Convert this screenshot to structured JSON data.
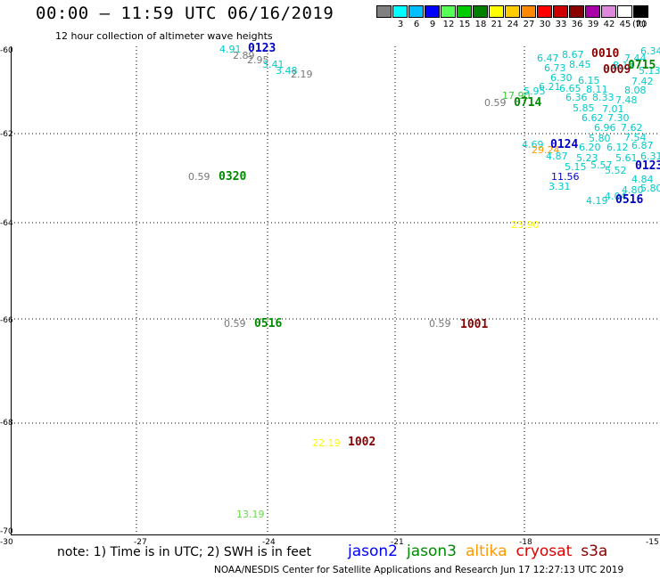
{
  "header": {
    "title": "00:00 – 11:59 UTC 06/16/2019",
    "subtitle": "12 hour collection of altimeter wave heights"
  },
  "scale": {
    "colors": [
      "#808080",
      "#00ffff",
      "#00bfff",
      "#0000ff",
      "#55ff55",
      "#00cc00",
      "#008000",
      "#ffff00",
      "#ffcc00",
      "#ff8800",
      "#ff0000",
      "#cc0000",
      "#880000",
      "#aa00aa",
      "#dd88dd",
      "#ffffff",
      "#000000"
    ],
    "labels": [
      "3",
      "6",
      "9",
      "12",
      "15",
      "18",
      "21",
      "24",
      "27",
      "30",
      "33",
      "36",
      "39",
      "42",
      "45",
      "70"
    ],
    "unit": "(ft)"
  },
  "axes": {
    "lat_labels": [
      "-60",
      "-62",
      "-64",
      "-66",
      "-68",
      "-70"
    ],
    "lon_labels": [
      "-30",
      "-27",
      "-24",
      "-21",
      "-18",
      "-15"
    ]
  },
  "map": {
    "wave_points": [
      {
        "text": "4.91",
        "color": "#00cccc"
      },
      {
        "text": "2.89",
        "color": "#777777"
      },
      {
        "text": "2.95",
        "color": "#777777"
      },
      {
        "text": "3.41",
        "color": "#00cccc"
      },
      {
        "text": "3.48",
        "color": "#00cccc"
      },
      {
        "text": "2.19",
        "color": "#777777"
      },
      {
        "text": "0.59",
        "color": "#777777"
      },
      {
        "text": "0.59",
        "color": "#777777"
      },
      {
        "text": "0.59",
        "color": "#777777"
      },
      {
        "text": "0.59",
        "color": "#777777"
      },
      {
        "text": "22.19",
        "color": "#ffff00"
      },
      {
        "text": "13.19",
        "color": "#66dd44"
      },
      {
        "text": "23.90",
        "color": "#ffff00"
      },
      {
        "text": "17.90",
        "color": "#33cc33"
      },
      {
        "text": "5.95",
        "color": "#00cccc"
      },
      {
        "text": "6.47",
        "color": "#00cccc"
      },
      {
        "text": "8.67",
        "color": "#00cccc"
      },
      {
        "text": "6.73",
        "color": "#00cccc"
      },
      {
        "text": "8.45",
        "color": "#00cccc"
      },
      {
        "text": "7.44",
        "color": "#00cccc"
      },
      {
        "text": "8.12",
        "color": "#00cccc"
      },
      {
        "text": "6.30",
        "color": "#00cccc"
      },
      {
        "text": "6.15",
        "color": "#00cccc"
      },
      {
        "text": "6.21",
        "color": "#00cccc"
      },
      {
        "text": "6.65",
        "color": "#00cccc"
      },
      {
        "text": "8.11",
        "color": "#00cccc"
      },
      {
        "text": "7.42",
        "color": "#00cccc"
      },
      {
        "text": "8.08",
        "color": "#00cccc"
      },
      {
        "text": "6.36",
        "color": "#00cccc"
      },
      {
        "text": "8.33",
        "color": "#00cccc"
      },
      {
        "text": "7.48",
        "color": "#00cccc"
      },
      {
        "text": "5.85",
        "color": "#00cccc"
      },
      {
        "text": "7.01",
        "color": "#00cccc"
      },
      {
        "text": "6.62",
        "color": "#00cccc"
      },
      {
        "text": "7.30",
        "color": "#00cccc"
      },
      {
        "text": "6.96",
        "color": "#00cccc"
      },
      {
        "text": "7.62",
        "color": "#00cccc"
      },
      {
        "text": "5.80",
        "color": "#00cccc"
      },
      {
        "text": "7.54",
        "color": "#00cccc"
      },
      {
        "text": "4.69",
        "color": "#00cccc"
      },
      {
        "text": "29.24",
        "color": "#ff9900"
      },
      {
        "text": "6.20",
        "color": "#00cccc"
      },
      {
        "text": "6.12",
        "color": "#00cccc"
      },
      {
        "text": "6.87",
        "color": "#00cccc"
      },
      {
        "text": "4.87",
        "color": "#00cccc"
      },
      {
        "text": "5.23",
        "color": "#00cccc"
      },
      {
        "text": "5.61",
        "color": "#00cccc"
      },
      {
        "text": "6.31",
        "color": "#00cccc"
      },
      {
        "text": "5.15",
        "color": "#00cccc"
      },
      {
        "text": "5.57",
        "color": "#00cccc"
      },
      {
        "text": "5.52",
        "color": "#00cccc"
      },
      {
        "text": "11.56",
        "color": "#0000cc"
      },
      {
        "text": "3.31",
        "color": "#00cccc"
      },
      {
        "text": "4.84",
        "color": "#00cccc"
      },
      {
        "text": "4.19",
        "color": "#00cccc"
      },
      {
        "text": "4.04",
        "color": "#00cccc"
      },
      {
        "text": "4.80",
        "color": "#00cccc"
      },
      {
        "text": "5.80",
        "color": "#00cccc"
      },
      {
        "text": "6.34",
        "color": "#00cccc"
      },
      {
        "text": "5.13",
        "color": "#00cccc"
      }
    ],
    "pass_ids": [
      {
        "text": "0123",
        "color": "#0000cc"
      },
      {
        "text": "0320",
        "color": "#008800"
      },
      {
        "text": "0516",
        "color": "#008800"
      },
      {
        "text": "1001",
        "color": "#880000"
      },
      {
        "text": "1002",
        "color": "#880000"
      },
      {
        "text": "0714",
        "color": "#008800"
      },
      {
        "text": "0010",
        "color": "#880000"
      },
      {
        "text": "0009",
        "color": "#880000"
      },
      {
        "text": "0715",
        "color": "#008800"
      },
      {
        "text": "0124",
        "color": "#0000cc"
      },
      {
        "text": "0123",
        "color": "#0000cc"
      },
      {
        "text": "0516",
        "color": "#0000cc"
      }
    ]
  },
  "footer": {
    "note": "note: 1) Time is in UTC; 2) SWH is in feet",
    "satellites": [
      {
        "name": "jason2",
        "color": "#0000ff"
      },
      {
        "name": "jason3",
        "color": "#008800"
      },
      {
        "name": "altika",
        "color": "#ff9900"
      },
      {
        "name": "cryosat",
        "color": "#dd0000"
      },
      {
        "name": "s3a",
        "color": "#880000"
      }
    ],
    "credit": "NOAA/NESDIS Center for Satellite Applications and Research     Jun 17 12:27:13 UTC 2019"
  }
}
